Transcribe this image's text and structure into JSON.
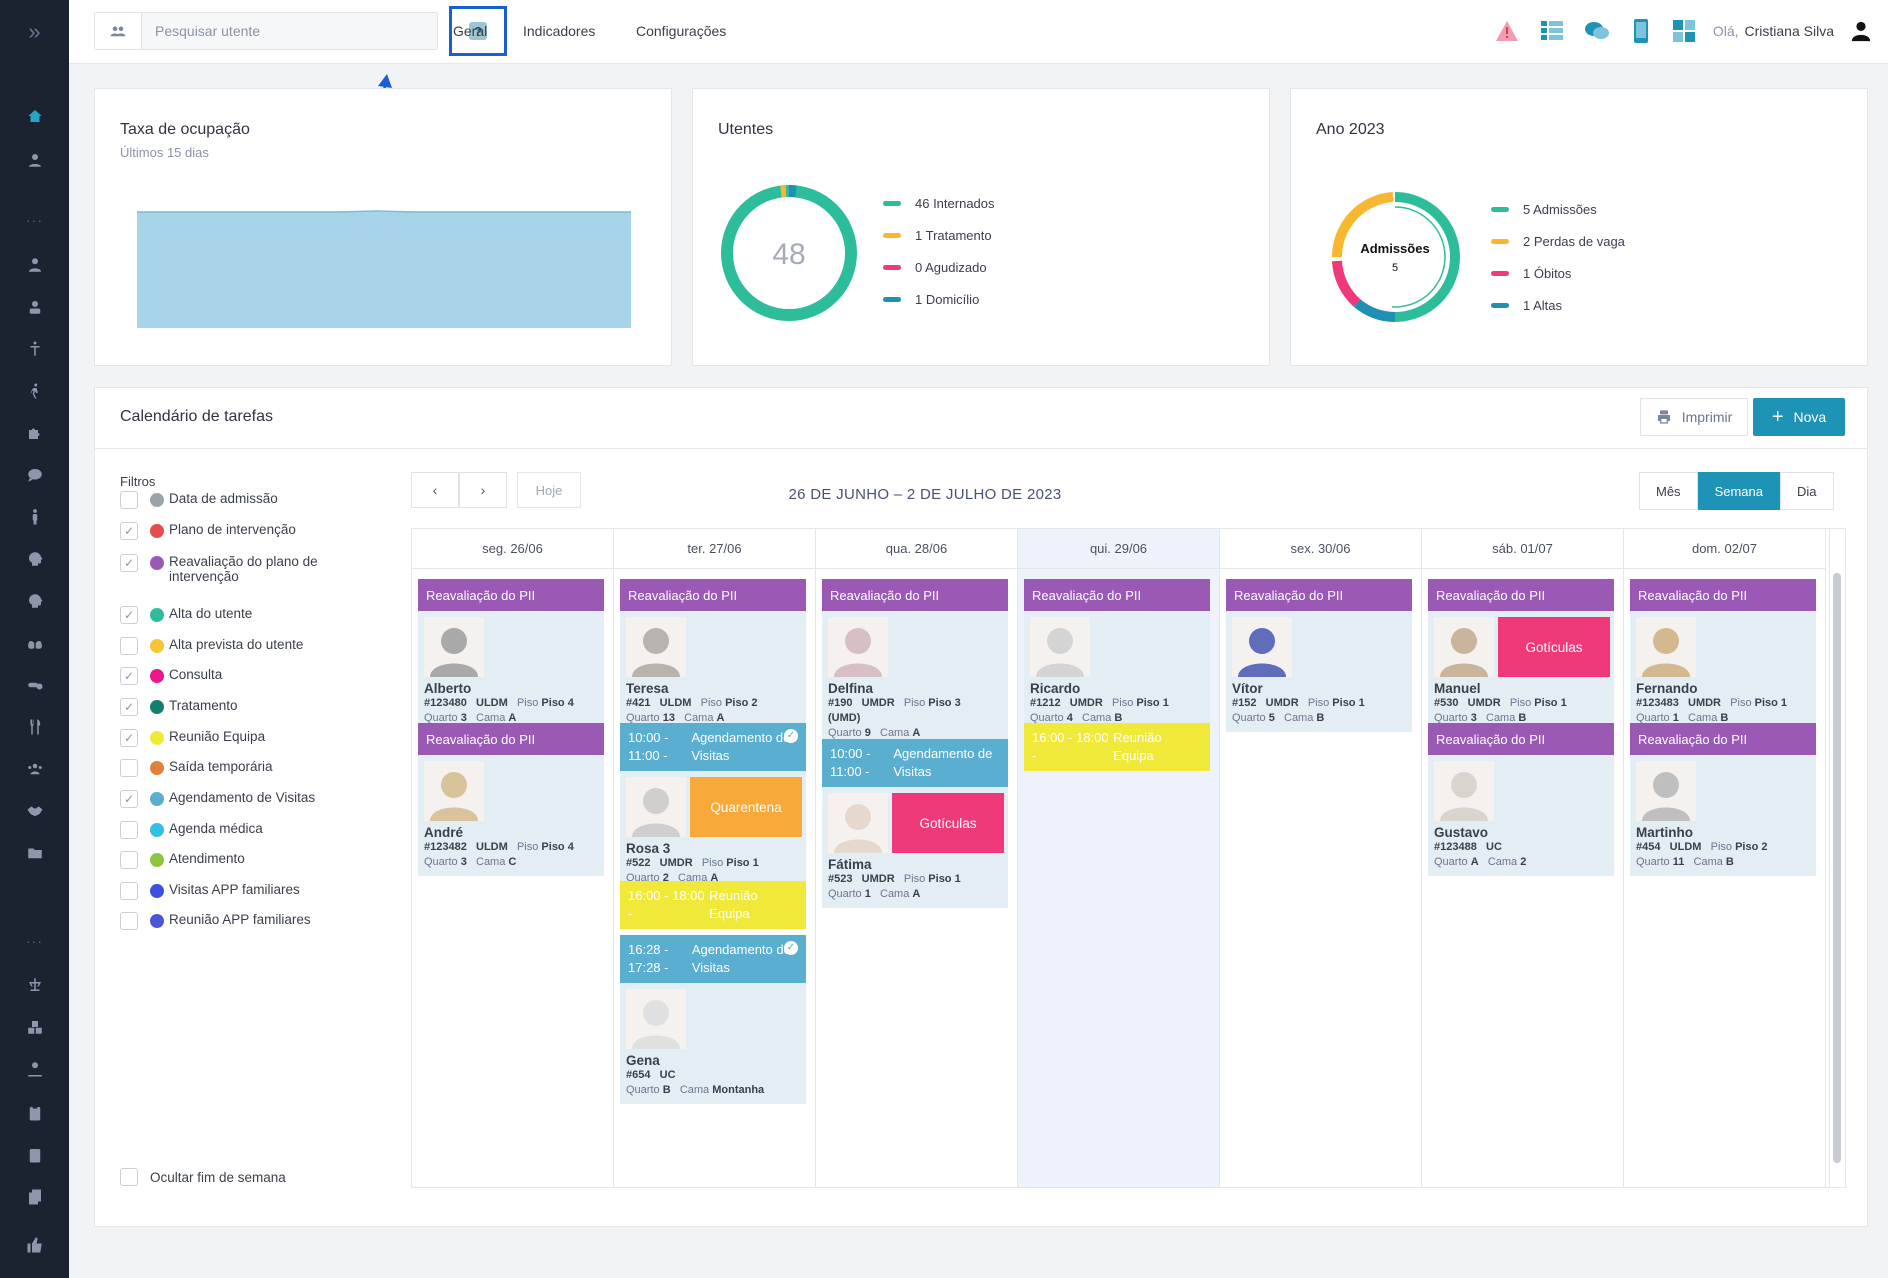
{
  "search": {
    "placeholder": "Pesquisar utente"
  },
  "nav": {
    "geral": "Geral",
    "indicadores": "Indicadores",
    "configuracoes": "Configurações"
  },
  "user": {
    "greeting": "Olá,",
    "name": "Cristiana Silva"
  },
  "occupancy": {
    "title": "Taxa de ocupação",
    "subtitle": "Últimos 15 dias"
  },
  "utentes": {
    "title": "Utentes",
    "total": "48",
    "legend": [
      {
        "label": "46 Internados",
        "color": "#2ebd9a"
      },
      {
        "label": "1 Tratamento",
        "color": "#f7b731"
      },
      {
        "label": "0 Agudizado",
        "color": "#f0397a"
      },
      {
        "label": "1 Domicílio",
        "color": "#1f8fb3"
      }
    ]
  },
  "year": {
    "title": "Ano 2023",
    "center_label": "Admissões",
    "center_value": "5",
    "legend": [
      {
        "label": "5 Admissões",
        "color": "#2ebd9a"
      },
      {
        "label": "2 Perdas de vaga",
        "color": "#f7b731"
      },
      {
        "label": "1 Óbitos",
        "color": "#f0397a"
      },
      {
        "label": "1 Altas",
        "color": "#1f8fb3"
      }
    ]
  },
  "calendar": {
    "title": "Calendário de tarefas",
    "print": "Imprimir",
    "new": "Nova",
    "filters_label": "Filtros",
    "filters": [
      {
        "label": "Data de admissão",
        "color": "#9aa3a8",
        "checked": false
      },
      {
        "label": "Plano de intervenção",
        "color": "#e74c4c",
        "checked": true
      },
      {
        "label": "Reavaliação do plano de intervenção",
        "color": "#9b59b6",
        "checked": true
      },
      {
        "label": "Alta do utente",
        "color": "#2ebd9a",
        "checked": true
      },
      {
        "label": "Alta prevista do utente",
        "color": "#f7c531",
        "checked": false
      },
      {
        "label": "Consulta",
        "color": "#e8198b",
        "checked": true
      },
      {
        "label": "Tratamento",
        "color": "#14806b",
        "checked": true
      },
      {
        "label": "Reunião Equipa",
        "color": "#f0e93a",
        "checked": true
      },
      {
        "label": "Saída temporária",
        "color": "#e0823a",
        "checked": false
      },
      {
        "label": "Agendamento de Visitas",
        "color": "#5aaed0",
        "checked": true
      },
      {
        "label": "Agenda médica",
        "color": "#35bfe8",
        "checked": false
      },
      {
        "label": "Atendimento",
        "color": "#8cc63f",
        "checked": false
      },
      {
        "label": "Visitas APP familiares",
        "color": "#3b4fe0",
        "checked": false
      },
      {
        "label": "Reunião APP familiares",
        "color": "#4a56d8",
        "checked": false
      }
    ],
    "hide_weekend": "Ocultar fim de semana",
    "today": "Hoje",
    "range": "26 DE JUNHO – 2 DE JULHO DE 2023",
    "views": {
      "month": "Mês",
      "week": "Semana",
      "day": "Dia"
    },
    "days": [
      "seg. 26/06",
      "ter. 27/06",
      "qua. 28/06",
      "qui. 29/06",
      "sex. 30/06",
      "sáb. 01/07",
      "dom. 02/07"
    ],
    "event_title": "Reavaliação do PII",
    "visit_title": "Agendamento de Visitas",
    "meeting_title": "Reunião Equipa",
    "times": {
      "t1": "10:00 - 11:00 -",
      "t2": "16:00 - 18:00 -",
      "t3": "16:28 - 17:28 -"
    },
    "tags": {
      "quarentena": "Quarentena",
      "goticulas": "Gotículas"
    },
    "patients": {
      "alberto": {
        "name": "Alberto",
        "id": "#123480",
        "unit": "ULDM",
        "piso": "Piso 4",
        "quarto": "3",
        "cama": "A"
      },
      "andre": {
        "name": "André",
        "id": "#123482",
        "unit": "ULDM",
        "piso": "Piso 4",
        "quarto": "3",
        "cama": "C"
      },
      "teresa": {
        "name": "Teresa",
        "id": "#421",
        "unit": "ULDM",
        "piso": "Piso 2",
        "quarto": "13",
        "cama": "A"
      },
      "rosa": {
        "name": "Rosa 3",
        "id": "#522",
        "unit": "UMDR",
        "piso": "Piso 1",
        "quarto": "2",
        "cama": "A"
      },
      "gena": {
        "name": "Gena",
        "id": "#654",
        "unit": "UC",
        "piso": "",
        "quarto": "B",
        "cama": "Montanha"
      },
      "delfina": {
        "name": "Delfina",
        "id": "#190",
        "unit": "UMDR",
        "piso": "Piso 3",
        "extra": "(UMD)",
        "quarto": "9",
        "cama": "A"
      },
      "fatima": {
        "name": "Fátima",
        "id": "#523",
        "unit": "UMDR",
        "piso": "Piso 1",
        "quarto": "1",
        "cama": "A"
      },
      "ricardo": {
        "name": "Ricardo",
        "id": "#1212",
        "unit": "UMDR",
        "piso": "Piso 1",
        "quarto": "4",
        "cama": "B"
      },
      "vitor": {
        "name": "Vítor",
        "id": "#152",
        "unit": "UMDR",
        "piso": "Piso 1",
        "quarto": "5",
        "cama": "B"
      },
      "manuel": {
        "name": "Manuel",
        "id": "#530",
        "unit": "UMDR",
        "piso": "Piso 1",
        "quarto": "3",
        "cama": "B"
      },
      "gustavo": {
        "name": "Gustavo",
        "id": "#123488",
        "unit": "UC",
        "piso": "",
        "quarto": "A",
        "cama": "2"
      },
      "fernando": {
        "name": "Fernando",
        "id": "#123483",
        "unit": "UMDR",
        "piso": "Piso 1",
        "quarto": "1",
        "cama": "B"
      },
      "martinho": {
        "name": "Martinho",
        "id": "#454",
        "unit": "ULDM",
        "piso": "Piso 2",
        "quarto": "11",
        "cama": "B"
      }
    },
    "labels": {
      "piso": "Piso",
      "quarto": "Quarto",
      "cama": "Cama"
    }
  }
}
